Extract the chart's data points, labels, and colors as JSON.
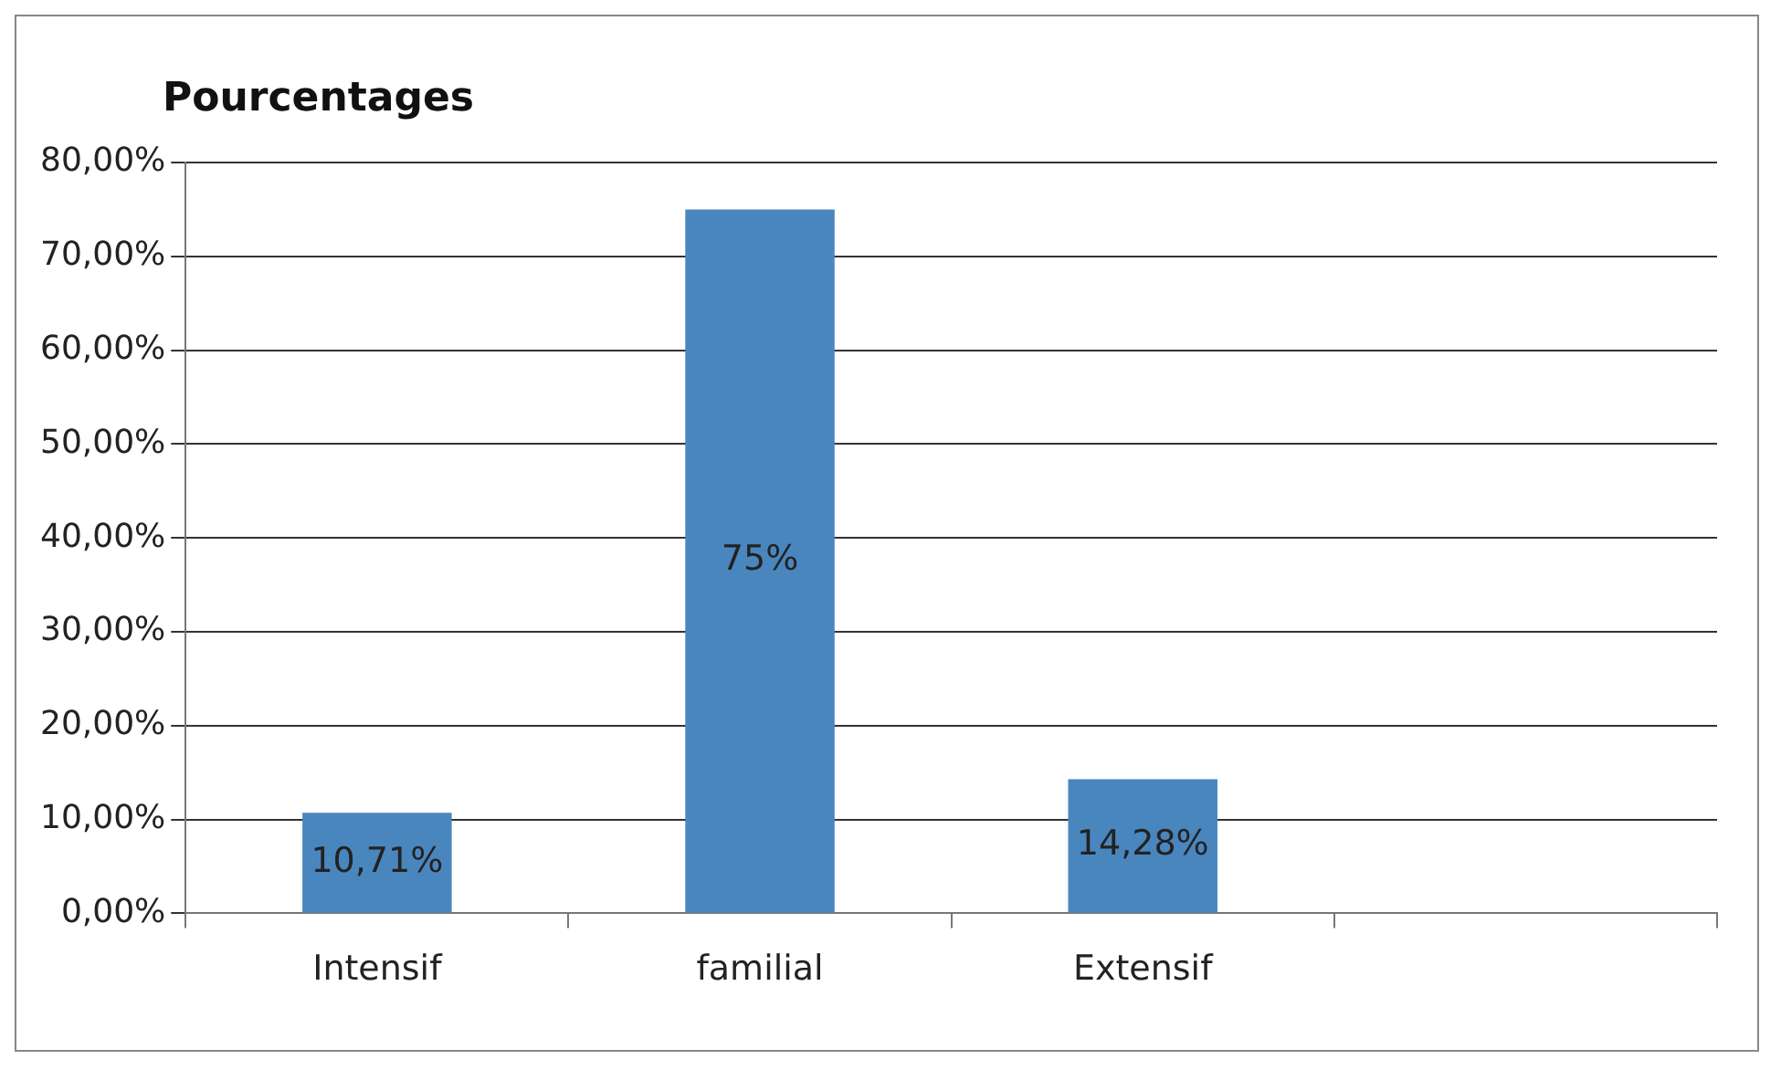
{
  "chart_data": {
    "type": "bar",
    "title": "Pourcentages",
    "categories": [
      "Intensif",
      "familial",
      "Extensif",
      null
    ],
    "values": [
      10.71,
      75,
      14.28,
      null
    ],
    "value_labels": [
      "10,71%",
      "75%",
      "14,28%",
      null
    ],
    "color": "#4a86be",
    "ylim": [
      0,
      80
    ],
    "yticks": [
      {
        "value": 0,
        "label": "0,00%"
      },
      {
        "value": 10,
        "label": "10,00%"
      },
      {
        "value": 20,
        "label": "20,00%"
      },
      {
        "value": 30,
        "label": "30,00%"
      },
      {
        "value": 40,
        "label": "40,00%"
      },
      {
        "value": 50,
        "label": "50,00%"
      },
      {
        "value": 60,
        "label": "60,00%"
      },
      {
        "value": 70,
        "label": "70,00%"
      },
      {
        "value": 80,
        "label": "80,00%"
      }
    ],
    "grid": "y"
  }
}
